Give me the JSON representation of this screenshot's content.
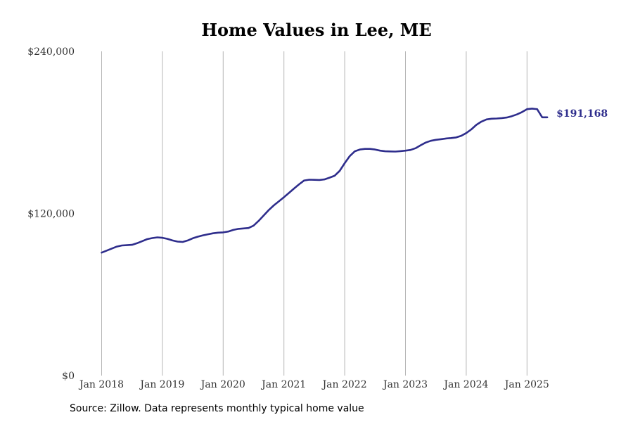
{
  "chart_data": {
    "type": "line",
    "title": "Home Values in Lee, ME",
    "xlabel": "",
    "ylabel": "",
    "x_ticks": [
      "Jan 2018",
      "Jan 2019",
      "Jan 2020",
      "Jan 2021",
      "Jan 2022",
      "Jan 2023",
      "Jan 2024",
      "Jan 2025"
    ],
    "y_ticks": [
      "$0",
      "$120,000",
      "$240,000"
    ],
    "y_tick_values": [
      0,
      120000,
      240000
    ],
    "ylim": [
      0,
      240000
    ],
    "xlim": [
      "2018-01",
      "2025-05"
    ],
    "grid": "vertical",
    "end_label": "$191,168",
    "series": [
      {
        "color": "#2e2d8c",
        "x": [
          "2018-01",
          "2018-02",
          "2018-03",
          "2018-04",
          "2018-05",
          "2018-06",
          "2018-07",
          "2018-08",
          "2018-09",
          "2018-10",
          "2018-11",
          "2018-12",
          "2019-01",
          "2019-02",
          "2019-03",
          "2019-04",
          "2019-05",
          "2019-06",
          "2019-07",
          "2019-08",
          "2019-09",
          "2019-10",
          "2019-11",
          "2019-12",
          "2020-01",
          "2020-02",
          "2020-03",
          "2020-04",
          "2020-05",
          "2020-06",
          "2020-07",
          "2020-08",
          "2020-09",
          "2020-10",
          "2020-11",
          "2020-12",
          "2021-01",
          "2021-02",
          "2021-03",
          "2021-04",
          "2021-05",
          "2021-06",
          "2021-07",
          "2021-08",
          "2021-09",
          "2021-10",
          "2021-11",
          "2021-12",
          "2022-01",
          "2022-02",
          "2022-03",
          "2022-04",
          "2022-05",
          "2022-06",
          "2022-07",
          "2022-08",
          "2022-09",
          "2022-10",
          "2022-11",
          "2022-12",
          "2023-01",
          "2023-02",
          "2023-03",
          "2023-04",
          "2023-05",
          "2023-06",
          "2023-07",
          "2023-08",
          "2023-09",
          "2023-10",
          "2023-11",
          "2023-12",
          "2024-01",
          "2024-02",
          "2024-03",
          "2024-04",
          "2024-05",
          "2024-06",
          "2024-07",
          "2024-08",
          "2024-09",
          "2024-10",
          "2024-11",
          "2024-12",
          "2025-01",
          "2025-02",
          "2025-03",
          "2025-04",
          "2025-05"
        ],
        "y": [
          91000,
          92500,
          94000,
          95500,
          96300,
          96500,
          96800,
          98000,
          99500,
          101000,
          101800,
          102300,
          102000,
          101200,
          100000,
          99200,
          98900,
          100000,
          101600,
          102800,
          103800,
          104600,
          105300,
          105800,
          106000,
          106600,
          107800,
          108600,
          108900,
          109200,
          111000,
          114500,
          118500,
          122500,
          126000,
          129000,
          132000,
          135200,
          138500,
          141600,
          144400,
          145000,
          144900,
          144800,
          145200,
          146500,
          147900,
          151500,
          157200,
          162500,
          166000,
          167300,
          167800,
          167800,
          167300,
          166500,
          166000,
          165900,
          165800,
          166100,
          166500,
          167000,
          168300,
          170500,
          172500,
          173800,
          174500,
          175000,
          175500,
          175800,
          176300,
          177500,
          179500,
          182200,
          185600,
          188000,
          189600,
          190100,
          190300,
          190600,
          191000,
          192000,
          193300,
          195000,
          197200,
          197600,
          197200,
          191168,
          191168
        ]
      }
    ]
  },
  "source_note": "Source: Zillow. Data represents monthly typical home value"
}
